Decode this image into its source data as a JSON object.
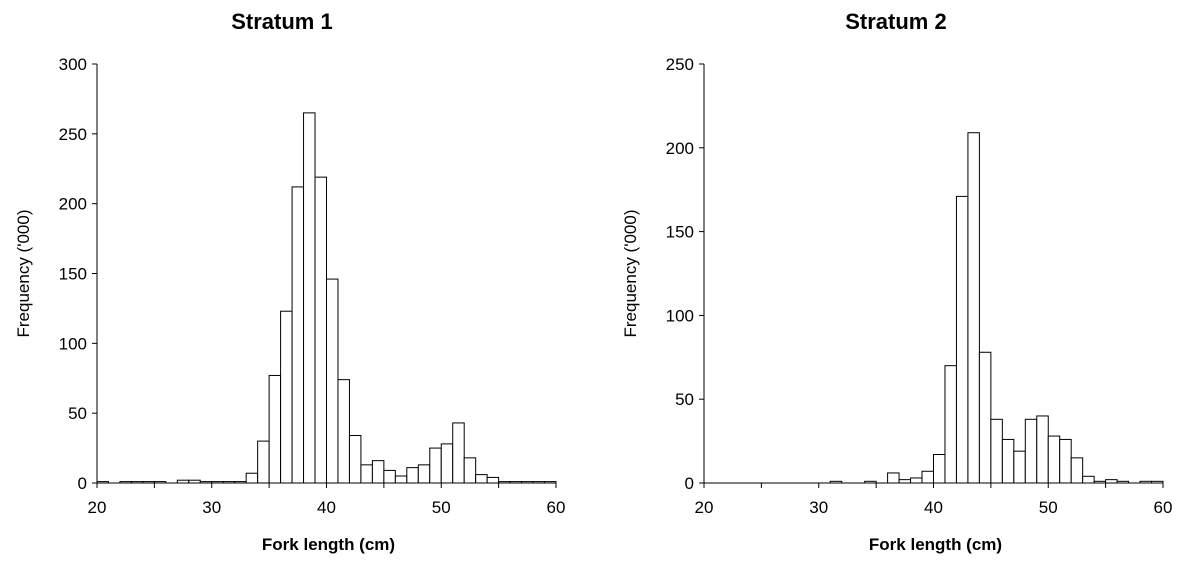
{
  "chart_data": [
    {
      "type": "bar",
      "title": "Stratum 1",
      "xlabel": "Fork length (cm)",
      "ylabel": "Frequency ('000)",
      "xlim": [
        20,
        60
      ],
      "ylim": [
        0,
        300
      ],
      "xticks": [
        20,
        30,
        40,
        50,
        60
      ],
      "yticks": [
        0,
        50,
        100,
        150,
        200,
        250,
        300
      ],
      "bin_width": 1,
      "x": [
        20,
        21,
        22,
        23,
        24,
        25,
        26,
        27,
        28,
        29,
        30,
        31,
        32,
        33,
        34,
        35,
        36,
        37,
        38,
        39,
        40,
        41,
        42,
        43,
        44,
        45,
        46,
        47,
        48,
        49,
        50,
        51,
        52,
        53,
        54,
        55,
        56,
        57,
        58,
        59
      ],
      "values": [
        1,
        0,
        1,
        1,
        1,
        1,
        0,
        2,
        2,
        1,
        1,
        1,
        1,
        7,
        30,
        77,
        123,
        212,
        265,
        219,
        146,
        74,
        34,
        13,
        16,
        9,
        5,
        11,
        13,
        25,
        28,
        43,
        18,
        6,
        4,
        1,
        1,
        1,
        1,
        1
      ],
      "grid": false,
      "legend": "none"
    },
    {
      "type": "bar",
      "title": "Stratum 2",
      "xlabel": "Fork length (cm)",
      "ylabel": "Frequency ('000)",
      "xlim": [
        20,
        60
      ],
      "ylim": [
        0,
        250
      ],
      "xticks": [
        20,
        30,
        40,
        50,
        60
      ],
      "yticks": [
        0,
        50,
        100,
        150,
        200,
        250
      ],
      "bin_width": 1,
      "x": [
        20,
        21,
        22,
        23,
        24,
        25,
        26,
        27,
        28,
        29,
        30,
        31,
        32,
        33,
        34,
        35,
        36,
        37,
        38,
        39,
        40,
        41,
        42,
        43,
        44,
        45,
        46,
        47,
        48,
        49,
        50,
        51,
        52,
        53,
        54,
        55,
        56,
        57,
        58,
        59
      ],
      "values": [
        0,
        0,
        0,
        0,
        0,
        0,
        0,
        0,
        0,
        0,
        0,
        1,
        0,
        0,
        1,
        0,
        6,
        2,
        3,
        7,
        17,
        70,
        171,
        209,
        78,
        38,
        26,
        19,
        38,
        40,
        28,
        26,
        15,
        4,
        1,
        2,
        1,
        0,
        1,
        1
      ],
      "grid": false,
      "legend": "none"
    }
  ]
}
